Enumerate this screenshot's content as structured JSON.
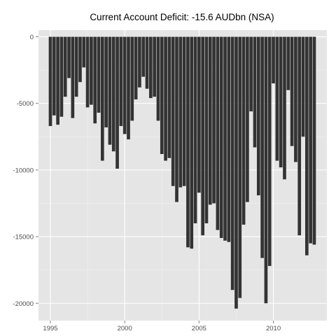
{
  "chart_data": {
    "type": "bar",
    "title": "Current Account Deficit: -15.6 AUDbn (NSA)",
    "xlabel": "",
    "ylabel": "",
    "x_ticks": [
      1995,
      2000,
      2005,
      2010
    ],
    "y_ticks": [
      0,
      -5000,
      -10000,
      -15000,
      -20000
    ],
    "xlim": [
      1994.2,
      2013.6
    ],
    "ylim": [
      -21300,
      500
    ],
    "grid": true,
    "bar_width_years": 0.22,
    "colors": {
      "bar": "#333333",
      "panel": "#e5e5e5",
      "grid": "#ffffff"
    },
    "x": [
      1995.0,
      1995.25,
      1995.5,
      1995.75,
      1996.0,
      1996.25,
      1996.5,
      1996.75,
      1997.0,
      1997.25,
      1997.5,
      1997.75,
      1998.0,
      1998.25,
      1998.5,
      1998.75,
      1999.0,
      1999.25,
      1999.5,
      1999.75,
      2000.0,
      2000.25,
      2000.5,
      2000.75,
      2001.0,
      2001.25,
      2001.5,
      2001.75,
      2002.0,
      2002.25,
      2002.5,
      2002.75,
      2003.0,
      2003.25,
      2003.5,
      2003.75,
      2004.0,
      2004.25,
      2004.5,
      2004.75,
      2005.0,
      2005.25,
      2005.5,
      2005.75,
      2006.0,
      2006.25,
      2006.5,
      2006.75,
      2007.0,
      2007.25,
      2007.5,
      2007.75,
      2008.0,
      2008.25,
      2008.5,
      2008.75,
      2009.0,
      2009.25,
      2009.5,
      2009.75,
      2010.0,
      2010.25,
      2010.5,
      2010.75,
      2011.0,
      2011.25,
      2011.5,
      2011.75,
      2012.0,
      2012.25,
      2012.5,
      2012.75
    ],
    "values": [
      -6700,
      -5900,
      -6600,
      -6000,
      -4500,
      -3100,
      -6100,
      -4500,
      -3400,
      -2300,
      -5300,
      -5100,
      -6500,
      -5700,
      -9300,
      -6800,
      -8100,
      -8600,
      -9900,
      -6700,
      -7300,
      -7700,
      -6300,
      -4700,
      -3800,
      -3000,
      -3900,
      -4600,
      -4500,
      -6300,
      -8800,
      -9300,
      -9100,
      -11200,
      -12400,
      -11300,
      -11200,
      -15800,
      -15900,
      -14000,
      -11700,
      -14900,
      -14000,
      -12600,
      -12500,
      -14500,
      -15100,
      -15300,
      -15400,
      -19000,
      -20400,
      -19600,
      -14100,
      -12400,
      -5600,
      -8300,
      -11900,
      -16600,
      -20000,
      -17200,
      -3500,
      -9300,
      -9800,
      -10700,
      -4000,
      -8200,
      -9400,
      -14900,
      -7500,
      -16400,
      -15500,
      -15600
    ]
  }
}
